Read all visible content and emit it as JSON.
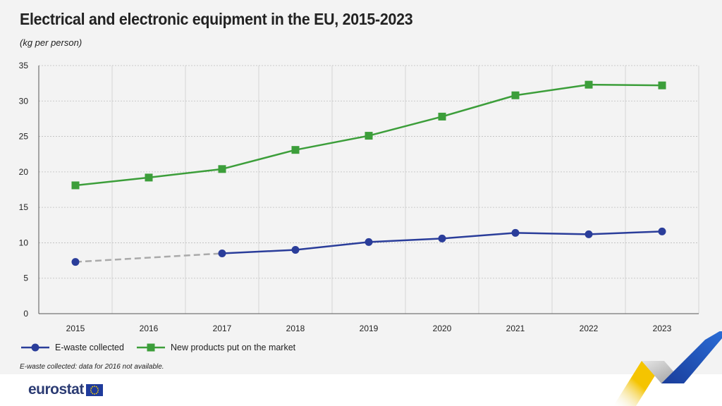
{
  "header": {
    "title": "Electrical and electronic equipment in the EU, 2015-2023",
    "subtitle": "(kg per person)"
  },
  "chart_data": {
    "type": "line",
    "title": "Electrical and electronic equipment in the EU, 2015-2023",
    "subtitle": "(kg per person)",
    "x": [
      "2015",
      "2016",
      "2017",
      "2018",
      "2019",
      "2020",
      "2021",
      "2022",
      "2023"
    ],
    "ylim": [
      0,
      35
    ],
    "yticks": [
      0,
      5,
      10,
      15,
      20,
      25,
      30,
      35
    ],
    "grid": true,
    "legend_position": "bottom-left",
    "series": [
      {
        "name": "E-waste collected",
        "color": "#2a3d9a",
        "marker": "circle",
        "values": [
          7.3,
          null,
          8.5,
          9.0,
          10.1,
          10.6,
          11.4,
          11.2,
          11.6
        ],
        "gap_bridge_color": "#aaaaaa"
      },
      {
        "name": "New products put on the market",
        "color": "#3c9e3a",
        "marker": "square",
        "values": [
          18.1,
          19.2,
          20.4,
          23.1,
          25.1,
          27.8,
          30.8,
          32.3,
          32.2
        ]
      }
    ]
  },
  "footnote": "E-waste collected: data for 2016 not available.",
  "logo": {
    "text": "eurostat",
    "flag_color": "#1f3b9c",
    "star_color": "#ffd400"
  }
}
